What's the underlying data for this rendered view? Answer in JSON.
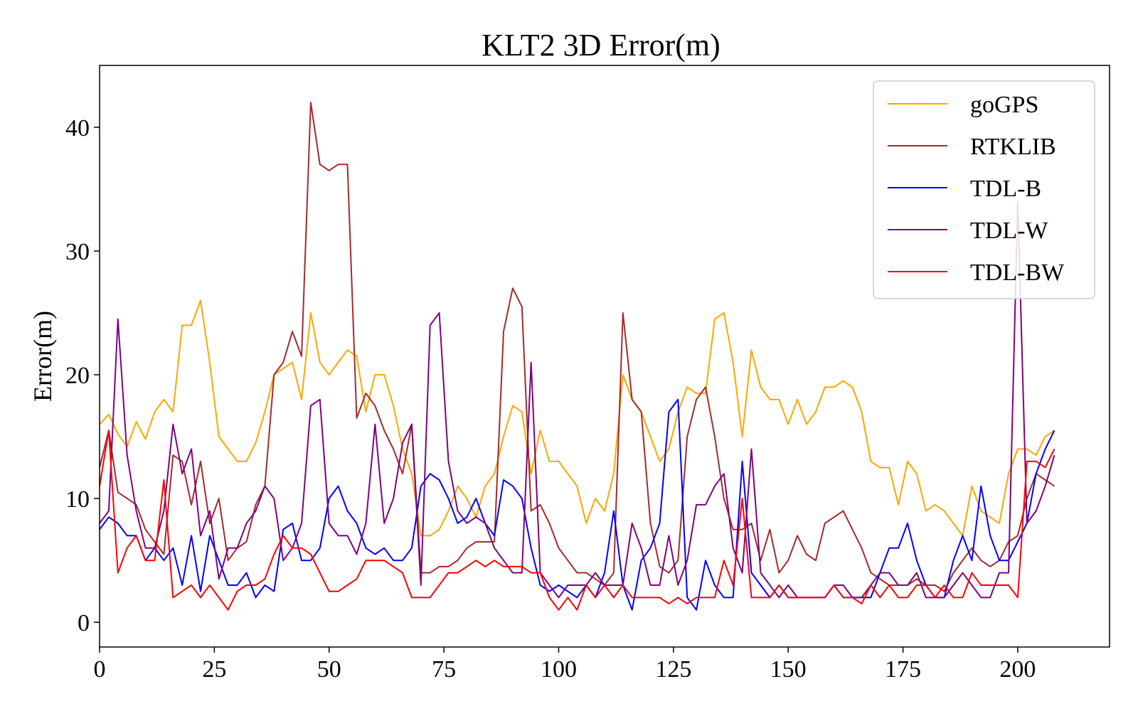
{
  "chart_data": {
    "type": "line",
    "title": "KLT2 3D Error(m)",
    "xlabel": "",
    "ylabel": "Error(m)",
    "xlim": [
      0,
      220
    ],
    "ylim": [
      -2,
      45
    ],
    "xticks": [
      0,
      25,
      50,
      75,
      100,
      125,
      150,
      175,
      200
    ],
    "yticks": [
      0,
      10,
      20,
      30,
      40
    ],
    "legend_position": "top-right",
    "grid": false,
    "x": [
      0,
      2,
      4,
      6,
      8,
      10,
      12,
      14,
      16,
      18,
      20,
      22,
      24,
      26,
      28,
      30,
      32,
      34,
      36,
      38,
      40,
      42,
      44,
      46,
      48,
      50,
      52,
      54,
      56,
      58,
      60,
      62,
      64,
      66,
      68,
      70,
      72,
      74,
      76,
      78,
      80,
      82,
      84,
      86,
      88,
      90,
      92,
      94,
      96,
      98,
      100,
      102,
      104,
      106,
      108,
      110,
      112,
      114,
      116,
      118,
      120,
      122,
      124,
      126,
      128,
      130,
      132,
      134,
      136,
      138,
      140,
      142,
      144,
      146,
      148,
      150,
      152,
      154,
      156,
      158,
      160,
      162,
      164,
      166,
      168,
      170,
      172,
      174,
      176,
      178,
      180,
      182,
      184,
      186,
      188,
      190,
      192,
      194,
      196,
      198,
      200,
      202,
      204,
      206,
      208
    ],
    "series": [
      {
        "name": "goGPS",
        "color": "#FFA500",
        "values": [
          16,
          16.8,
          15.2,
          14.2,
          16.2,
          14.8,
          17,
          18,
          17,
          24,
          24,
          26,
          21,
          15,
          14,
          13,
          13,
          14.5,
          17,
          20,
          20.5,
          21,
          18,
          25,
          21,
          20,
          21,
          22,
          21.5,
          17,
          20,
          20,
          17.5,
          14,
          12,
          7,
          7,
          7.5,
          9,
          11,
          10,
          8.5,
          11,
          12,
          15,
          17.5,
          17,
          12,
          15.5,
          13,
          13,
          12,
          11,
          8,
          10,
          9,
          12,
          20,
          18,
          17,
          15,
          13,
          14,
          17,
          19,
          18.5,
          18.5,
          24.5,
          25,
          21,
          15,
          22,
          19,
          18,
          18,
          16,
          18,
          16,
          17,
          19,
          19,
          19.5,
          19,
          17,
          13,
          12.5,
          12.5,
          9.5,
          13,
          12,
          9,
          9.5,
          9,
          8,
          7,
          11,
          9,
          8.5,
          8,
          12,
          14,
          14,
          13.5,
          15,
          15.5
        ]
      },
      {
        "name": "RTKLIB",
        "color": "#A52A2A",
        "values": [
          12.5,
          15.5,
          10.5,
          10,
          9.5,
          7.5,
          6.5,
          5.5,
          13.5,
          13,
          9.5,
          13,
          8,
          10,
          5,
          6,
          6.5,
          9.5,
          11,
          20,
          21,
          23.5,
          21.5,
          42,
          37,
          36.5,
          37,
          37,
          16.5,
          18.5,
          17.5,
          15.5,
          14,
          12,
          16,
          4,
          4,
          4.5,
          4.5,
          5,
          6,
          6.5,
          6.5,
          6.5,
          23.5,
          27,
          25.5,
          9,
          9.5,
          8,
          6,
          5,
          4,
          4,
          3.5,
          3,
          4,
          25,
          18,
          17,
          8,
          4.5,
          4,
          5,
          15,
          18,
          19,
          15,
          10,
          7.5,
          7.5,
          8,
          5,
          7.5,
          4,
          5,
          7,
          5.5,
          5,
          8,
          8.5,
          9,
          7.5,
          6,
          4,
          3.5,
          3,
          3,
          3,
          3.5,
          3,
          3,
          2.5,
          4,
          5,
          6,
          5,
          4.5,
          5,
          6.5,
          7,
          10,
          12,
          11.5,
          11
        ]
      },
      {
        "name": "TDL-B",
        "color": "#0000FF",
        "values": [
          7.5,
          8.5,
          8,
          7,
          7,
          5,
          6,
          5,
          6,
          3,
          7,
          2.5,
          7,
          5,
          3,
          3,
          4,
          2,
          3,
          2.5,
          7.5,
          8,
          5,
          5,
          6,
          10,
          11,
          9,
          8,
          6,
          5.5,
          6,
          5,
          5,
          6,
          11,
          12,
          11.5,
          10,
          8,
          8.5,
          10,
          8,
          7,
          11.5,
          11,
          10,
          6,
          3,
          2.5,
          3,
          2.5,
          2,
          3,
          2,
          4,
          9,
          3,
          1,
          5,
          6,
          8,
          17,
          18,
          2,
          1,
          5,
          3,
          2,
          2,
          13,
          4,
          3,
          2,
          3,
          2,
          2,
          2,
          2,
          2,
          3,
          2,
          2,
          2,
          2,
          4,
          6,
          6,
          8,
          5,
          3,
          2,
          2,
          5,
          7,
          5,
          11,
          7,
          5,
          5,
          6.5,
          8,
          12,
          14,
          15.5
        ]
      },
      {
        "name": "TDL-W",
        "color": "#800080",
        "values": [
          8,
          9,
          24.5,
          13.5,
          9,
          6,
          6,
          9,
          16,
          12,
          14,
          7,
          9,
          3.5,
          6,
          6,
          8,
          9,
          11,
          10,
          5,
          6,
          8,
          17.5,
          18,
          8,
          7,
          7,
          5.5,
          8,
          16,
          8,
          10,
          14.5,
          16,
          3,
          24,
          25,
          13,
          9,
          8,
          8.5,
          8,
          6,
          5,
          4,
          4,
          21,
          4,
          3,
          2,
          3,
          3,
          3,
          4,
          3,
          3,
          3,
          8,
          6,
          3,
          3,
          7,
          3,
          5,
          9.5,
          9.5,
          11,
          12,
          6,
          4,
          14,
          4,
          3,
          2,
          3,
          2,
          2,
          2,
          2,
          3,
          3,
          2,
          2,
          3,
          4,
          4,
          3,
          3,
          4,
          2,
          2,
          2,
          3,
          4,
          3,
          2,
          2,
          4,
          4,
          34,
          8,
          9,
          11,
          13.5
        ]
      },
      {
        "name": "TDL-BW",
        "color": "#FF0000",
        "values": [
          11,
          15.5,
          4,
          6,
          7,
          5,
          5,
          11.5,
          2,
          2.5,
          3,
          2,
          3,
          2,
          1,
          2.5,
          3,
          3,
          3.5,
          5.5,
          7,
          6,
          6,
          5.5,
          4,
          2.5,
          2.5,
          3,
          3.5,
          5,
          5,
          5,
          4.5,
          4,
          2,
          2,
          2,
          3,
          4,
          4,
          4.5,
          5,
          4.5,
          5,
          4.5,
          4.5,
          4.5,
          4,
          4,
          2,
          1,
          2,
          1,
          3,
          2,
          3,
          2,
          3,
          2,
          2,
          2,
          2,
          1.5,
          2,
          1.5,
          2,
          2,
          2,
          5,
          3,
          10,
          2,
          2,
          2,
          3,
          2,
          2,
          2,
          2,
          2,
          3,
          2,
          2,
          1.5,
          3,
          2,
          3,
          2,
          2,
          3,
          3,
          2,
          3,
          2,
          2,
          4,
          3,
          3,
          3,
          3,
          2,
          13,
          13,
          12.5,
          14
        ]
      }
    ]
  }
}
